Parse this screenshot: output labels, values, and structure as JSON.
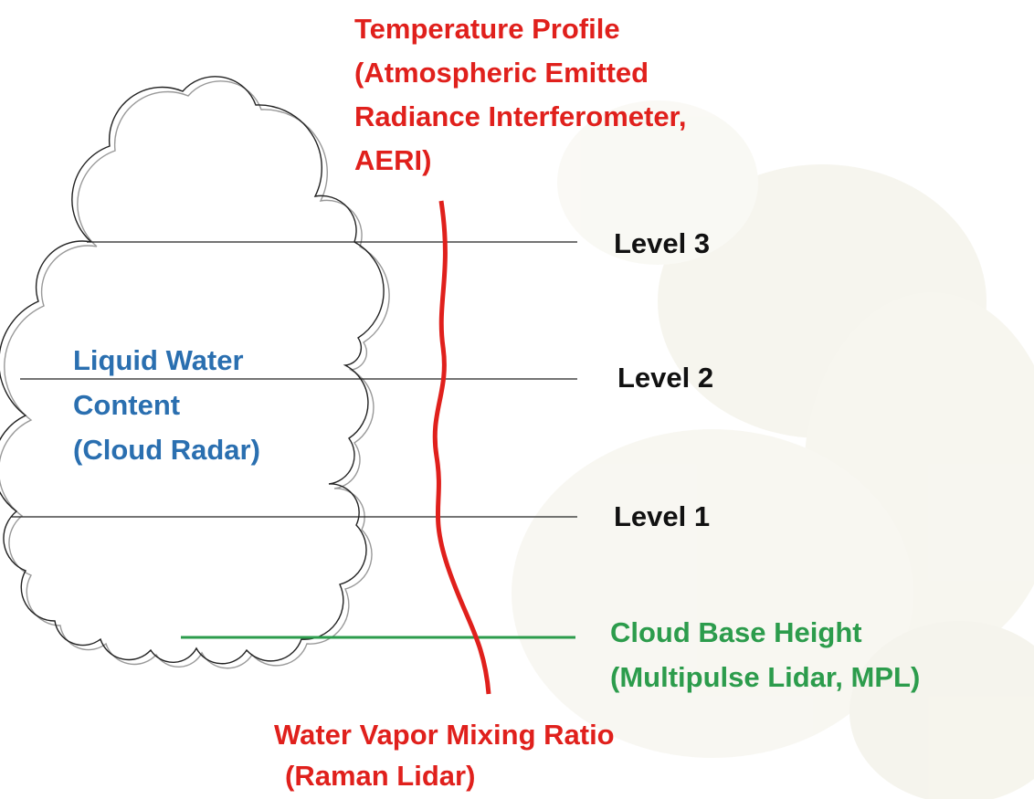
{
  "temperature_label": [
    "Temperature Profile",
    "(Atmospheric Emitted",
    "Radiance Interferometer,",
    "AERI)"
  ],
  "liquid_water_label": [
    "Liquid Water",
    "Content",
    "(Cloud Radar)"
  ],
  "levels": [
    "Level 3",
    "Level 2",
    "Level 1"
  ],
  "cloud_base_label": [
    "Cloud Base Height",
    "(Multipulse Lidar, MPL)"
  ],
  "water_vapor_label": [
    "Water Vapor Mixing Ratio",
    "(Raman Lidar)"
  ]
}
